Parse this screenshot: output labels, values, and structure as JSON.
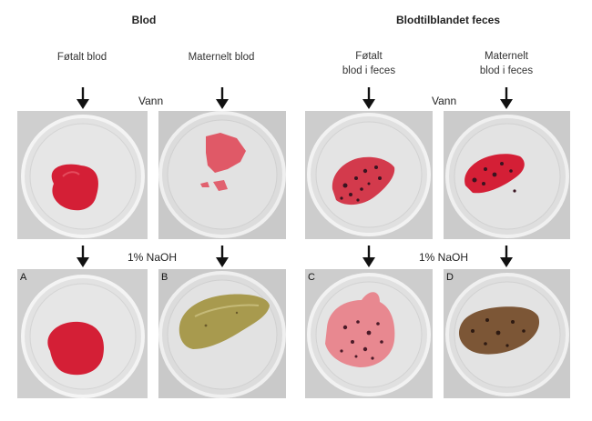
{
  "headings": {
    "blood": "Blod",
    "fecal": "Blodtilblandet feces"
  },
  "column_labels": {
    "fetal_blood": "Føtalt blod",
    "maternal_blood": "Maternelt blod",
    "fetal_fecal_line1": "Føtalt",
    "fetal_fecal_line2": "blod i feces",
    "maternal_fecal_line1": "Maternelt",
    "maternal_fecal_line2": "blod i feces"
  },
  "step_labels": {
    "water_left": "Vann",
    "water_right": "Vann",
    "naoh_left": "1% NaOH",
    "naoh_right": "1% NaOH"
  },
  "panel_letters": {
    "a": "A",
    "b": "B",
    "c": "C",
    "d": "D"
  },
  "colors": {
    "fetal_blood_red": "#d41f36",
    "maternal_blood_pink": "#e04a5a",
    "naoh_brownish_yellow": "#a89a4e",
    "fecal_pink": "#e88890",
    "fecal_brown": "#7c5636",
    "dish_gray": "#dcdcdc",
    "photo_background": "#c9c9c9"
  }
}
